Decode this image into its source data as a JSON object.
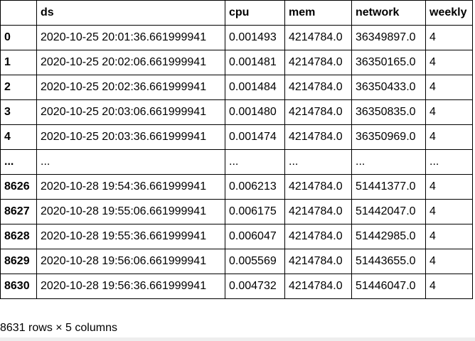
{
  "columns": [
    "",
    "ds",
    "cpu",
    "mem",
    "network",
    "weekly"
  ],
  "rows": [
    [
      "0",
      "2020-10-25 20:01:36.661999941",
      "0.001493",
      "4214784.0",
      "36349897.0",
      "4"
    ],
    [
      "1",
      "2020-10-25 20:02:06.661999941",
      "0.001481",
      "4214784.0",
      "36350165.0",
      "4"
    ],
    [
      "2",
      "2020-10-25 20:02:36.661999941",
      "0.001484",
      "4214784.0",
      "36350433.0",
      "4"
    ],
    [
      "3",
      "2020-10-25 20:03:06.661999941",
      "0.001480",
      "4214784.0",
      "36350835.0",
      "4"
    ],
    [
      "4",
      "2020-10-25 20:03:36.661999941",
      "0.001474",
      "4214784.0",
      "36350969.0",
      "4"
    ],
    [
      "...",
      "...",
      "...",
      "...",
      "...",
      "..."
    ],
    [
      "8626",
      "2020-10-28 19:54:36.661999941",
      "0.006213",
      "4214784.0",
      "51441377.0",
      "4"
    ],
    [
      "8627",
      "2020-10-28 19:55:06.661999941",
      "0.006175",
      "4214784.0",
      "51442047.0",
      "4"
    ],
    [
      "8628",
      "2020-10-28 19:55:36.661999941",
      "0.006047",
      "4214784.0",
      "51442985.0",
      "4"
    ],
    [
      "8629",
      "2020-10-28 19:56:06.661999941",
      "0.005569",
      "4214784.0",
      "51443655.0",
      "4"
    ],
    [
      "8630",
      "2020-10-28 19:56:36.661999941",
      "0.004732",
      "4214784.0",
      "51446047.0",
      "4"
    ]
  ],
  "shape_text": "8631 rows × 5 columns"
}
